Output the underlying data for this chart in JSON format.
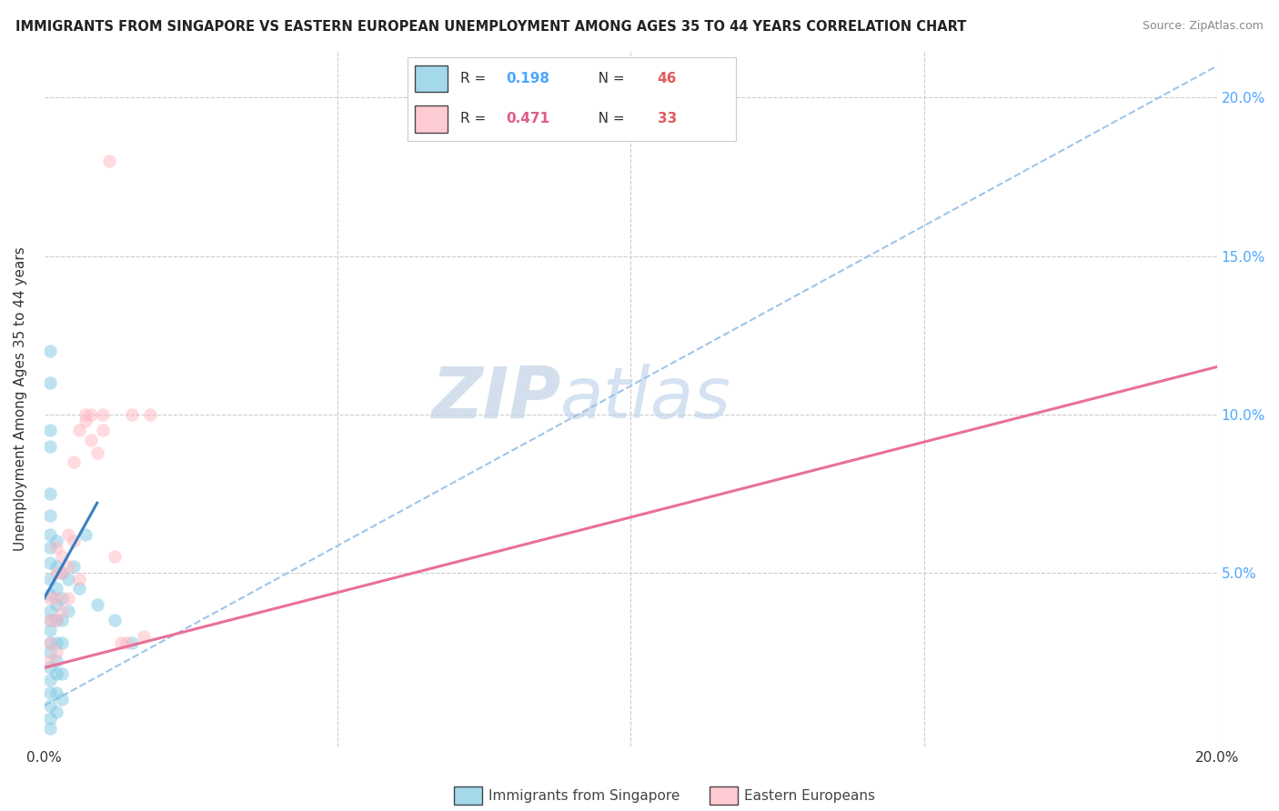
{
  "title": "IMMIGRANTS FROM SINGAPORE VS EASTERN EUROPEAN UNEMPLOYMENT AMONG AGES 35 TO 44 YEARS CORRELATION CHART",
  "source": "Source: ZipAtlas.com",
  "ylabel": "Unemployment Among Ages 35 to 44 years",
  "xlim": [
    0.0,
    0.2
  ],
  "ylim": [
    -0.005,
    0.215
  ],
  "legend_r1": "R = 0.198",
  "legend_n1": "N = 46",
  "legend_r2": "R = 0.471",
  "legend_n2": "N = 33",
  "legend_color1": "#7ec8e3",
  "legend_color2": "#ffb6c1",
  "r_color": "#4da6ff",
  "n_color": "#e05c5c",
  "watermark": "ZIPatlas",
  "bg_color": "#ffffff",
  "grid_color": "#cccccc",
  "singapore_color": "#7ec8e3",
  "eastern_color": "#ffb6c1",
  "trendline_sg_color": "#3a7ebf",
  "trendline_ee_color": "#e87099",
  "trendline_dash_color": "#a0c4e8",
  "dot_size": 110,
  "dot_alpha": 0.5,
  "singapore_dots": [
    [
      0.001,
      0.12
    ],
    [
      0.001,
      0.11
    ],
    [
      0.001,
      0.095
    ],
    [
      0.001,
      0.09
    ],
    [
      0.001,
      0.075
    ],
    [
      0.001,
      0.068
    ],
    [
      0.001,
      0.062
    ],
    [
      0.001,
      0.058
    ],
    [
      0.001,
      0.053
    ],
    [
      0.001,
      0.048
    ],
    [
      0.001,
      0.043
    ],
    [
      0.001,
      0.038
    ],
    [
      0.001,
      0.035
    ],
    [
      0.001,
      0.032
    ],
    [
      0.001,
      0.028
    ],
    [
      0.001,
      0.025
    ],
    [
      0.001,
      0.02
    ],
    [
      0.001,
      0.016
    ],
    [
      0.001,
      0.012
    ],
    [
      0.001,
      0.008
    ],
    [
      0.001,
      0.004
    ],
    [
      0.001,
      0.001
    ],
    [
      0.002,
      0.06
    ],
    [
      0.002,
      0.052
    ],
    [
      0.002,
      0.045
    ],
    [
      0.002,
      0.04
    ],
    [
      0.002,
      0.035
    ],
    [
      0.002,
      0.028
    ],
    [
      0.002,
      0.022
    ],
    [
      0.002,
      0.018
    ],
    [
      0.002,
      0.012
    ],
    [
      0.002,
      0.006
    ],
    [
      0.003,
      0.05
    ],
    [
      0.003,
      0.042
    ],
    [
      0.003,
      0.035
    ],
    [
      0.003,
      0.028
    ],
    [
      0.003,
      0.018
    ],
    [
      0.003,
      0.01
    ],
    [
      0.004,
      0.048
    ],
    [
      0.004,
      0.038
    ],
    [
      0.005,
      0.052
    ],
    [
      0.006,
      0.045
    ],
    [
      0.007,
      0.062
    ],
    [
      0.009,
      0.04
    ],
    [
      0.012,
      0.035
    ],
    [
      0.015,
      0.028
    ]
  ],
  "eastern_dots": [
    [
      0.001,
      0.042
    ],
    [
      0.001,
      0.035
    ],
    [
      0.001,
      0.028
    ],
    [
      0.001,
      0.022
    ],
    [
      0.002,
      0.058
    ],
    [
      0.002,
      0.05
    ],
    [
      0.002,
      0.042
    ],
    [
      0.002,
      0.035
    ],
    [
      0.002,
      0.025
    ],
    [
      0.003,
      0.055
    ],
    [
      0.003,
      0.05
    ],
    [
      0.003,
      0.038
    ],
    [
      0.004,
      0.062
    ],
    [
      0.004,
      0.052
    ],
    [
      0.004,
      0.042
    ],
    [
      0.005,
      0.085
    ],
    [
      0.005,
      0.06
    ],
    [
      0.006,
      0.095
    ],
    [
      0.006,
      0.048
    ],
    [
      0.007,
      0.1
    ],
    [
      0.007,
      0.098
    ],
    [
      0.008,
      0.1
    ],
    [
      0.008,
      0.092
    ],
    [
      0.009,
      0.088
    ],
    [
      0.01,
      0.1
    ],
    [
      0.01,
      0.095
    ],
    [
      0.011,
      0.18
    ],
    [
      0.012,
      0.055
    ],
    [
      0.013,
      0.028
    ],
    [
      0.014,
      0.028
    ],
    [
      0.015,
      0.1
    ],
    [
      0.017,
      0.03
    ],
    [
      0.018,
      0.1
    ]
  ],
  "sg_trendline_x": [
    0.0,
    0.009
  ],
  "sg_trendline_y": [
    0.042,
    0.072
  ],
  "ee_trendline_x": [
    0.0,
    0.2
  ],
  "ee_trendline_y": [
    0.02,
    0.115
  ],
  "dash_trendline_x": [
    0.0,
    0.2
  ],
  "dash_trendline_y": [
    0.008,
    0.21
  ]
}
